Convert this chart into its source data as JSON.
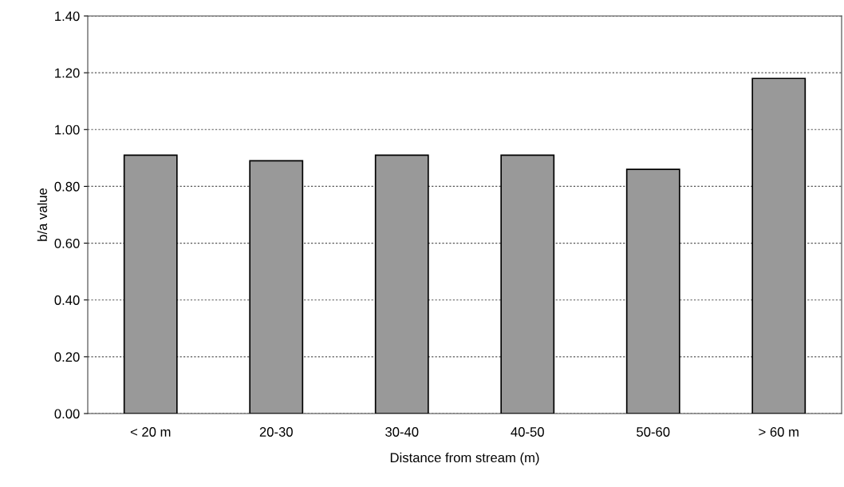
{
  "chart_data": {
    "type": "bar",
    "xlabel": "Distance from stream (m)",
    "ylabel": "b/a value",
    "categories": [
      "< 20 m",
      "20-30",
      "30-40",
      "40-50",
      "50-60",
      "> 60 m"
    ],
    "values": [
      0.91,
      0.89,
      0.91,
      0.91,
      0.86,
      1.18
    ],
    "color": "#999999",
    "ylim": [
      0,
      1.4
    ],
    "yticks": [
      {
        "value": 0,
        "label": "0.00"
      },
      {
        "value": 0.2,
        "label": "0.20"
      },
      {
        "value": 0.4,
        "label": "0.40"
      },
      {
        "value": 0.6,
        "label": "0.60"
      },
      {
        "value": 0.8,
        "label": "0.80"
      },
      {
        "value": 1.0,
        "label": "1.00"
      },
      {
        "value": 1.2,
        "label": "1.20"
      },
      {
        "value": 1.4,
        "label": "1.40"
      }
    ],
    "grid": "y"
  }
}
